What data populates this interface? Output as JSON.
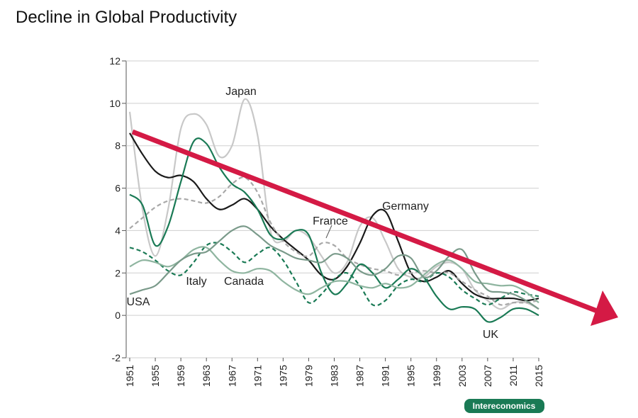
{
  "chart_data": {
    "type": "line",
    "title": "Decline in Global Productivity",
    "source": "Intereconomics",
    "x": [
      1951,
      1953,
      1955,
      1957,
      1959,
      1961,
      1963,
      1965,
      1967,
      1969,
      1971,
      1973,
      1975,
      1977,
      1979,
      1981,
      1983,
      1985,
      1987,
      1989,
      1991,
      1993,
      1995,
      1997,
      1999,
      2001,
      2003,
      2005,
      2007,
      2009,
      2011,
      2013,
      2015
    ],
    "xlim": [
      1951,
      2015
    ],
    "xticks": [
      1951,
      1955,
      1959,
      1963,
      1967,
      1971,
      1975,
      1979,
      1983,
      1987,
      1991,
      1995,
      1999,
      2003,
      2007,
      2011,
      2015
    ],
    "ylim": [
      -2,
      12
    ],
    "yticks": [
      -2,
      0,
      2,
      4,
      6,
      8,
      10,
      12
    ],
    "grid": true,
    "series": [
      {
        "name": "Japan",
        "color": "#c8c8c8",
        "dashed": false,
        "values": [
          9.6,
          5,
          2.8,
          5,
          8.8,
          9.5,
          9.0,
          7.5,
          8,
          10.2,
          8.5,
          4,
          3.5,
          4,
          3.7,
          2.8,
          2,
          2.5,
          4.2,
          4.6,
          3.5,
          2.2,
          1.8,
          1.8,
          2.3,
          2.5,
          2.2,
          1.2,
          0.7,
          0.3,
          0.6,
          0.6,
          0.3
        ]
      },
      {
        "name": "Germany",
        "color": "#1a1a1a",
        "dashed": false,
        "values": [
          8.6,
          7.6,
          6.8,
          6.5,
          6.6,
          6.3,
          5.5,
          5.0,
          5.2,
          5.5,
          5.0,
          4.2,
          3.6,
          3.1,
          2.6,
          1.9,
          1.7,
          2.3,
          3.4,
          4.7,
          4.9,
          3.5,
          2.0,
          1.6,
          1.8,
          2.1,
          1.5,
          1.0,
          0.8,
          0.8,
          0.8,
          0.7,
          0.8
        ]
      },
      {
        "name": "France",
        "color": "#a8a8a8",
        "dashed": true,
        "values": [
          4.1,
          4.6,
          5.1,
          5.4,
          5.5,
          5.4,
          5.3,
          5.6,
          6.2,
          6.5,
          5.8,
          4.4,
          3.5,
          3.0,
          2.8,
          3.4,
          3.3,
          2.7,
          2.4,
          2.2,
          2.1,
          1.9,
          2.0,
          2.1,
          2.0,
          2.0,
          1.6,
          1.2,
          0.9,
          0.5,
          0.6,
          0.6,
          0.7
        ]
      },
      {
        "name": "Italy",
        "color": "#1a7a55",
        "dashed": false,
        "values": [
          5.7,
          5.2,
          3.3,
          4.2,
          6.3,
          8.2,
          8.1,
          7.0,
          6.2,
          5.8,
          5.0,
          3.8,
          3.6,
          4.0,
          3.8,
          2.0,
          1.0,
          1.5,
          2.4,
          2.0,
          1.3,
          1.7,
          2.2,
          1.8,
          0.9,
          0.3,
          0.4,
          0.3,
          -0.3,
          -0.1,
          0.3,
          0.3,
          0.0
        ]
      },
      {
        "name": "Canada",
        "color": "#1a7a55",
        "dashed": true,
        "values": [
          3.2,
          3.0,
          2.6,
          2.1,
          1.9,
          2.5,
          3.3,
          3.4,
          3.0,
          2.5,
          2.9,
          3.2,
          2.6,
          1.6,
          0.6,
          1.0,
          1.7,
          2.0,
          1.4,
          0.5,
          0.7,
          1.4,
          1.7,
          1.6,
          2.0,
          1.8,
          1.2,
          0.8,
          0.5,
          0.8,
          1.1,
          1.0,
          0.9
        ]
      },
      {
        "name": "USA",
        "color": "#8fb5a0",
        "dashed": false,
        "values": [
          2.3,
          2.6,
          2.5,
          2.3,
          2.6,
          3.1,
          3.2,
          2.6,
          2.1,
          2.0,
          2.2,
          2.1,
          1.6,
          1.2,
          1.0,
          1.3,
          1.6,
          1.6,
          1.4,
          1.3,
          1.5,
          1.3,
          1.4,
          1.9,
          2.4,
          2.6,
          2.2,
          1.6,
          1.5,
          1.4,
          1.4,
          1.1,
          0.6
        ]
      },
      {
        "name": "UK",
        "color": "#7a9a8a",
        "dashed": false,
        "values": [
          1.0,
          1.2,
          1.4,
          2.0,
          2.6,
          2.9,
          3.0,
          3.5,
          4.0,
          4.2,
          3.8,
          3.3,
          3.0,
          2.7,
          2.6,
          2.5,
          2.9,
          2.7,
          2.1,
          1.9,
          2.2,
          2.8,
          2.7,
          1.8,
          2.1,
          2.8,
          3.1,
          2.0,
          1.2,
          1.1,
          1.0,
          0.7,
          0.3
        ]
      }
    ]
  }
}
